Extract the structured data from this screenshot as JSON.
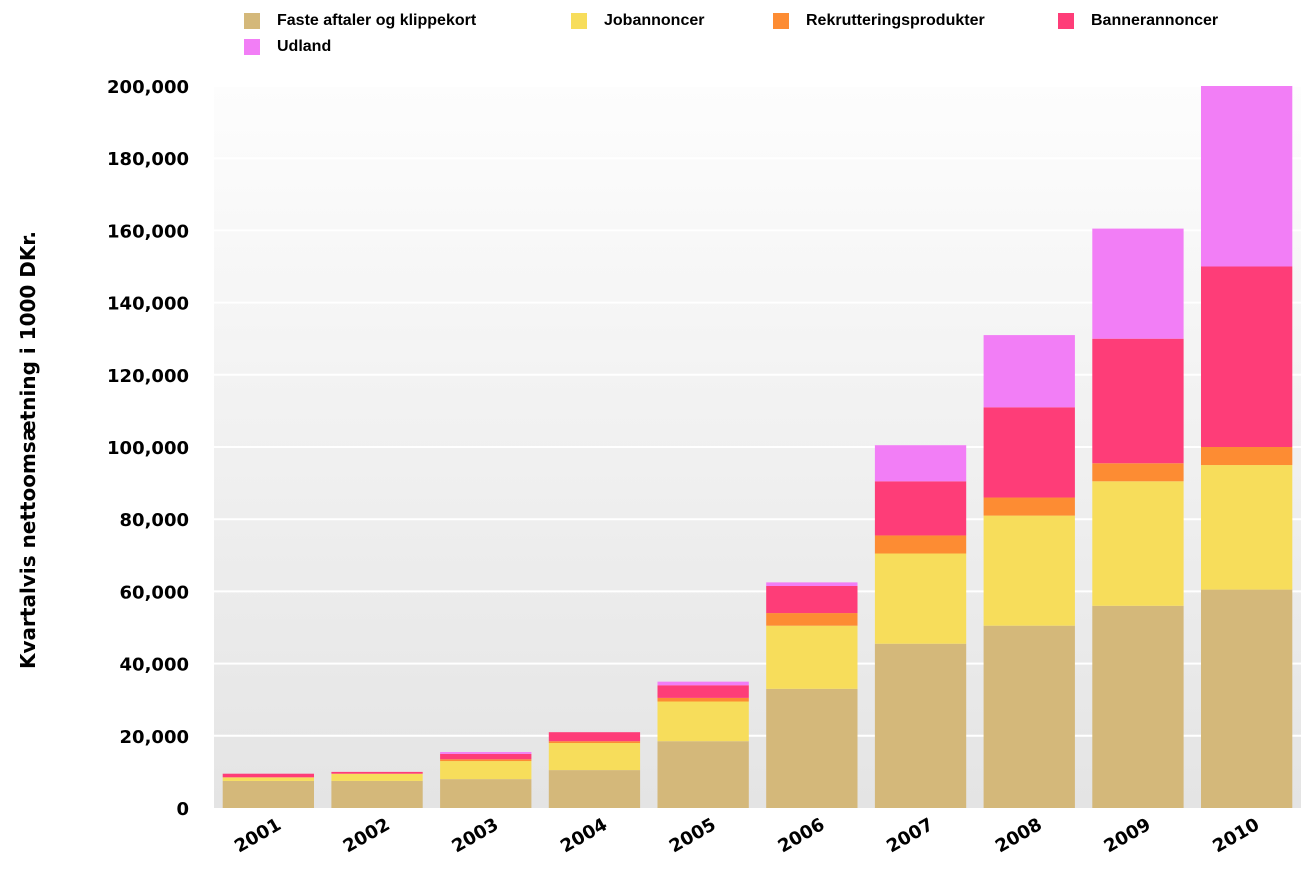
{
  "chart_data": {
    "type": "bar",
    "stacked": true,
    "title": "",
    "xlabel": "",
    "ylabel": "Kvartalvis nettoomsætning i 1000 DKr.",
    "ylim": [
      0,
      200000
    ],
    "yticks": [
      "0",
      "20,000",
      "40,000",
      "60,000",
      "80,000",
      "100,000",
      "120,000",
      "140,000",
      "160,000",
      "180,000",
      "200,000"
    ],
    "categories": [
      "2001",
      "2002",
      "2003",
      "2004",
      "2005",
      "2006",
      "2007",
      "2008",
      "2009",
      "2010"
    ],
    "legend_position": "top",
    "grid": true,
    "series": [
      {
        "name": "Faste aftaler og klippekort",
        "color": "#d4b87a",
        "values": [
          7500,
          7500,
          8000,
          10500,
          18500,
          33000,
          45500,
          50500,
          56000,
          60500
        ]
      },
      {
        "name": "Jobannoncer",
        "color": "#f7dd5b",
        "values": [
          1000,
          2000,
          5000,
          7500,
          11000,
          17500,
          25000,
          30500,
          34500,
          34500
        ]
      },
      {
        "name": "Rekrutteringsprodukter",
        "color": "#fd8c33",
        "values": [
          0,
          0,
          500,
          500,
          1000,
          3500,
          5000,
          5000,
          5000,
          5000
        ]
      },
      {
        "name": "Bannerannoncer",
        "color": "#fe3d78",
        "values": [
          1000,
          500,
          1500,
          2500,
          3500,
          7500,
          15000,
          25000,
          34500,
          50000
        ]
      },
      {
        "name": "Udland",
        "color": "#f27ef6",
        "values": [
          0,
          0,
          500,
          0,
          1000,
          1000,
          10000,
          20000,
          30500,
          50000
        ]
      }
    ]
  }
}
